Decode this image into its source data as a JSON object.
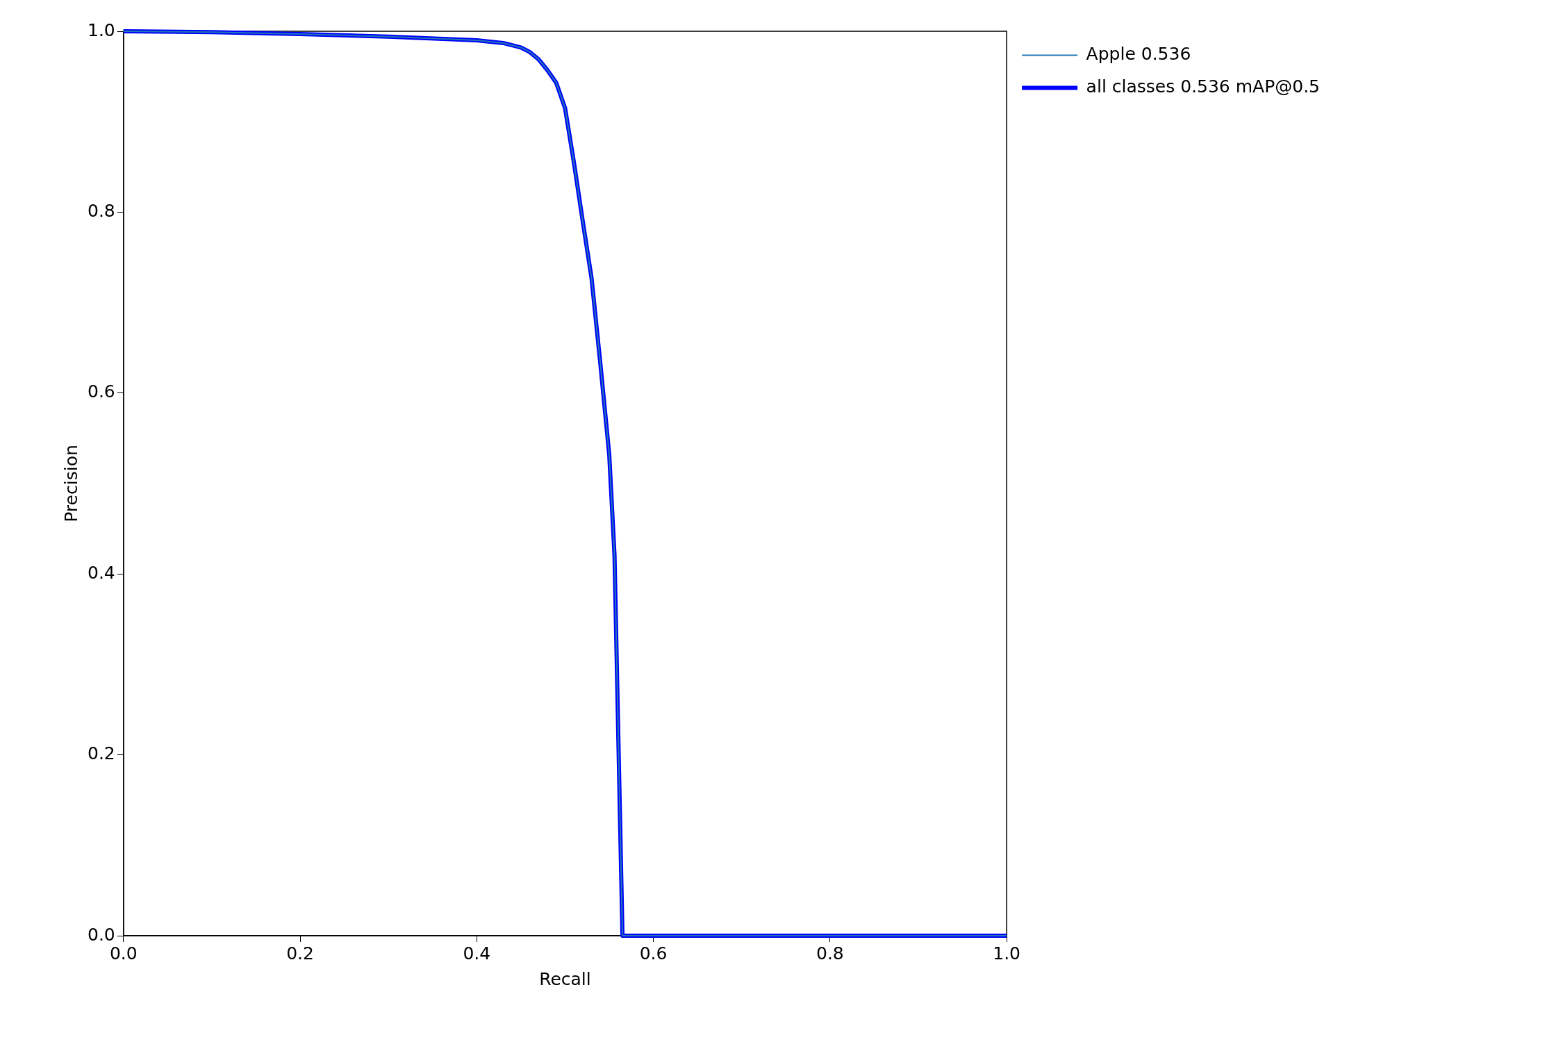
{
  "chart_data": {
    "type": "line",
    "xlabel": "Recall",
    "ylabel": "Precision",
    "xlim": [
      0,
      1
    ],
    "ylim": [
      0,
      1
    ],
    "xticks": [
      {
        "value": 0,
        "label": "0.0"
      },
      0.2,
      0.4,
      0.6,
      0.8,
      {
        "value": 1,
        "label": "1.0"
      }
    ],
    "yticks": [
      {
        "value": 0,
        "label": "0.0"
      },
      0.2,
      0.4,
      0.6,
      0.8,
      {
        "value": 1,
        "label": "1.0"
      }
    ],
    "x": [
      0,
      0.1,
      0.2,
      0.3,
      0.4,
      0.43,
      0.45,
      0.46,
      0.47,
      0.48,
      0.49,
      0.5,
      0.51,
      0.52,
      0.53,
      0.54,
      0.55,
      0.556,
      0.565,
      0.6,
      0.8,
      1
    ],
    "series": [
      {
        "name": "Apple 0.536",
        "color": "#1f77b4",
        "values": [
          1,
          0.999,
          0.997,
          0.994,
          0.99,
          0.987,
          0.982,
          0.977,
          0.969,
          0.957,
          0.943,
          0.915,
          0.855,
          0.79,
          0.727,
          0.632,
          0.532,
          0.42,
          0,
          0,
          0,
          0
        ]
      },
      {
        "name": "all classes 0.536 mAP@0.5",
        "color": "#0000ff",
        "values": [
          1,
          0.999,
          0.997,
          0.994,
          0.99,
          0.987,
          0.982,
          0.977,
          0.969,
          0.957,
          0.943,
          0.915,
          0.855,
          0.79,
          0.727,
          0.632,
          0.532,
          0.42,
          0,
          0,
          0,
          0
        ]
      }
    ],
    "grid": false,
    "legend": "top right"
  }
}
